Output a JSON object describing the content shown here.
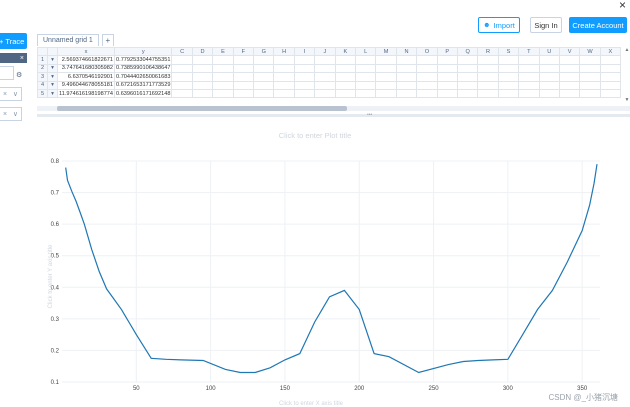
{
  "topbar": {
    "close_glyph": "×",
    "import_label": "Import",
    "signin_label": "Sign In",
    "create_label": "Create Account"
  },
  "sidebar": {
    "trace_label": "Trace",
    "strip_close": "×",
    "dd1_clear": "×",
    "dd1_arrow": "∨",
    "dd2_clear": "×",
    "dd2_arrow": "∨",
    "gear": "⚙"
  },
  "grid": {
    "tab_name": "Unnamed grid 1",
    "add_tab": "+",
    "columns": [
      "x",
      "y",
      "C",
      "D",
      "E",
      "F",
      "G",
      "H",
      "I",
      "J",
      "K",
      "L",
      "M",
      "N",
      "O",
      "P",
      "Q",
      "R",
      "S",
      "T",
      "U",
      "V",
      "W",
      "X"
    ],
    "rows": [
      {
        "n": "1",
        "x": "2.569374661822671",
        "y": "0.7792533044755351"
      },
      {
        "n": "2",
        "x": "3.747641680305982",
        "y": "0.7385990106438647"
      },
      {
        "n": "3",
        "x": "6.6370546192901",
        "y": "0.7044402650061683"
      },
      {
        "n": "4",
        "x": "9.496044678055181",
        "y": "0.6721653171773529"
      },
      {
        "n": "5",
        "x": "11.974616198198774",
        "y": "0.6396016171692148"
      }
    ]
  },
  "plot": {
    "title_placeholder": "Click to enter Plot title",
    "xaxis_placeholder": "Click to enter X axis title",
    "yaxis_placeholder": "Click to enter Y axis title",
    "line_color": "#1f77b4"
  },
  "chart_data": {
    "type": "line",
    "title": "",
    "xlabel": "",
    "ylabel": "",
    "xlim": [
      0,
      362
    ],
    "ylim": [
      0.1,
      0.8
    ],
    "x_ticks": [
      50,
      100,
      150,
      200,
      250,
      300,
      350
    ],
    "y_ticks": [
      0.1,
      0.2,
      0.3,
      0.4,
      0.5,
      0.6,
      0.7,
      0.8
    ],
    "grid": true,
    "series": [
      {
        "x": [
          2.5,
          3.7,
          6.6,
          9.5,
          12,
          15,
          20,
          25,
          30,
          40,
          50,
          60,
          70,
          80,
          95,
          110,
          120,
          130,
          140,
          150,
          160,
          170,
          175,
          180,
          190,
          200,
          210,
          220,
          240,
          260,
          270,
          280,
          290,
          300,
          310,
          320,
          330,
          340,
          350,
          355,
          358,
          360
        ],
        "y": [
          0.779,
          0.739,
          0.704,
          0.672,
          0.64,
          0.6,
          0.52,
          0.45,
          0.395,
          0.33,
          0.25,
          0.175,
          0.172,
          0.17,
          0.168,
          0.14,
          0.13,
          0.13,
          0.145,
          0.17,
          0.19,
          0.29,
          0.33,
          0.37,
          0.39,
          0.33,
          0.19,
          0.18,
          0.13,
          0.155,
          0.165,
          0.168,
          0.17,
          0.172,
          0.25,
          0.33,
          0.39,
          0.48,
          0.58,
          0.66,
          0.73,
          0.79
        ]
      }
    ]
  },
  "watermark": "CSDN @_小猪沉塘"
}
